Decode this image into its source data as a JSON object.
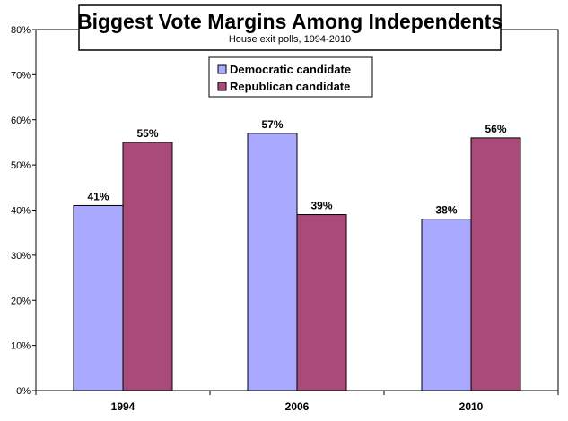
{
  "chart_data": {
    "type": "bar",
    "title": "Biggest Vote Margins Among Independents",
    "subtitle": "House exit polls, 1994-2010",
    "categories": [
      "1994",
      "2006",
      "2010"
    ],
    "series": [
      {
        "name": "Democratic candidate",
        "values": [
          41,
          57,
          38
        ],
        "labels": [
          "41%",
          "57%",
          "38%"
        ],
        "color": "#a9a9ff"
      },
      {
        "name": "Republican candidate",
        "values": [
          55,
          39,
          56
        ],
        "labels": [
          "55%",
          "39%",
          "56%"
        ],
        "color": "#a94a78"
      }
    ],
    "ylim": [
      0,
      80
    ],
    "yticks": [
      0,
      10,
      20,
      30,
      40,
      50,
      60,
      70,
      80
    ],
    "ytick_labels": [
      "0%",
      "10%",
      "20%",
      "30%",
      "40%",
      "50%",
      "60%",
      "70%",
      "80%"
    ],
    "xlabel": "",
    "ylabel": "",
    "grid": false,
    "legend_position": "top-center"
  }
}
